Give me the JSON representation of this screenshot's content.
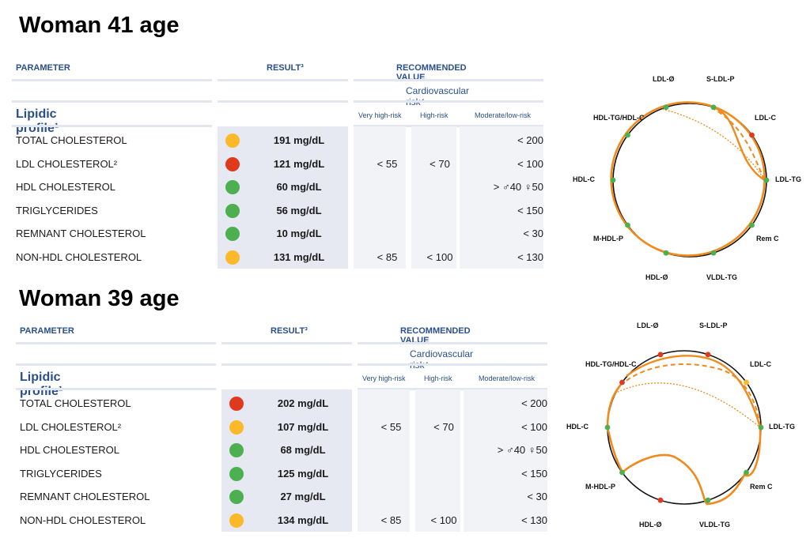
{
  "colors": {
    "green": "#4caf50",
    "orange": "#fbb829",
    "red": "#e03a1e",
    "curve": "#f08a1c",
    "header_blue": "#2a4f8a"
  },
  "header": {
    "parameter": "PARAMETER",
    "result": "RESULT³",
    "recommended": "RECOMMENDED VALUE",
    "cv_risk": "Cardiovascular risk⁴",
    "section": "Lipidic profile¹",
    "very_high": "Very high-risk",
    "high": "High-risk",
    "moderate": "Moderate/low-risk"
  },
  "panels": [
    {
      "title": "Woman 41 age",
      "rows": [
        {
          "name": "TOTAL CHOLESTEROL",
          "status": "orange",
          "value": "191 mg/dL",
          "very_high": "",
          "high": "",
          "moderate": "< 200"
        },
        {
          "name": "LDL CHOLESTEROL²",
          "status": "red",
          "value": "121 mg/dL",
          "very_high": "< 55",
          "high": "< 70",
          "moderate": "< 100"
        },
        {
          "name": "HDL CHOLESTEROL",
          "status": "green",
          "value": "60 mg/dL",
          "very_high": "",
          "high": "",
          "moderate": "> ♂40 ♀50"
        },
        {
          "name": "TRIGLYCERIDES",
          "status": "green",
          "value": "56 mg/dL",
          "very_high": "",
          "high": "",
          "moderate": "< 150"
        },
        {
          "name": "REMNANT CHOLESTEROL",
          "status": "green",
          "value": "10 mg/dL",
          "very_high": "",
          "high": "",
          "moderate": "< 30"
        },
        {
          "name": "NON-HDL CHOLESTEROL",
          "status": "orange",
          "value": "131 mg/dL",
          "very_high": "< 85",
          "high": "< 100",
          "moderate": "< 130"
        }
      ],
      "chart": {
        "labels": [
          "LDL-Ø",
          "S-LDL-P",
          "LDL-C",
          "LDL-TG",
          "Rem C",
          "VLDL-TG",
          "HDL-Ø",
          "M-HDL-P",
          "HDL-C",
          "HDL-TG/HDL-C"
        ],
        "marker_status": [
          "green",
          "green",
          "red",
          "green",
          "green",
          "green",
          "green",
          "green",
          "green",
          "green"
        ]
      }
    },
    {
      "title": "Woman 39 age",
      "rows": [
        {
          "name": "TOTAL CHOLESTEROL",
          "status": "red",
          "value": "202 mg/dL",
          "very_high": "",
          "high": "",
          "moderate": "< 200"
        },
        {
          "name": "LDL CHOLESTEROL²",
          "status": "orange",
          "value": "107 mg/dL",
          "very_high": "< 55",
          "high": "< 70",
          "moderate": "< 100"
        },
        {
          "name": "HDL CHOLESTEROL",
          "status": "green",
          "value": "68 mg/dL",
          "very_high": "",
          "high": "",
          "moderate": "> ♂40 ♀50"
        },
        {
          "name": "TRIGLYCERIDES",
          "status": "green",
          "value": "125 mg/dL",
          "very_high": "",
          "high": "",
          "moderate": "< 150"
        },
        {
          "name": "REMNANT CHOLESTEROL",
          "status": "green",
          "value": "27 mg/dL",
          "very_high": "",
          "high": "",
          "moderate": "< 30"
        },
        {
          "name": "NON-HDL CHOLESTEROL",
          "status": "orange",
          "value": "134 mg/dL",
          "very_high": "< 85",
          "high": "< 100",
          "moderate": "< 130"
        }
      ],
      "chart": {
        "labels": [
          "LDL-Ø",
          "S-LDL-P",
          "LDL-C",
          "LDL-TG",
          "Rem C",
          "VLDL-TG",
          "HDL-Ø",
          "M-HDL-P",
          "HDL-C",
          "HDL-TG/HDL-C"
        ],
        "marker_status": [
          "red",
          "red",
          "orange",
          "green",
          "green",
          "green",
          "red",
          "green",
          "green",
          "red"
        ]
      }
    }
  ]
}
